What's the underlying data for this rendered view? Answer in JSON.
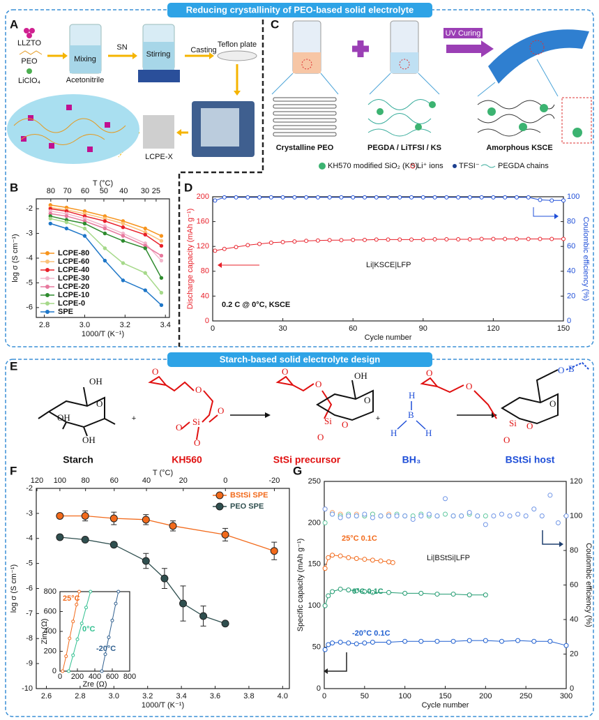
{
  "sections": [
    "Reducing crystallinity of PEO-based solid electrolyte",
    "Starch-based solid electrolyte design"
  ],
  "diagram_a": {
    "panel": "A",
    "labels": [
      "LLZTO",
      "PEO",
      "LiClO₄",
      "Acetonitrile",
      "SN",
      "Mixing",
      "Stirring",
      "Casting",
      "Teflon plate",
      "LCPE-X"
    ]
  },
  "diagram_c": {
    "panel": "C",
    "arrow": "UV Curing",
    "captions": [
      "Crystalline PEO",
      "PEGDA / LiTFSI / KS",
      "Amorphous KSCE"
    ],
    "legend": [
      "KH570 modified SiO₂ (KS)",
      "Li⁺ ions",
      "TFSI⁻",
      "PEGDA chains"
    ]
  },
  "diagram_e": {
    "panel": "E",
    "captions": [
      "Starch",
      "KH560",
      "StSi precursor",
      "BH₃",
      "BStSi host"
    ],
    "plus": "+",
    "atoms": {
      "starch": [
        "OH",
        "O",
        "OH",
        "OH"
      ],
      "kh560": [
        "O",
        "O",
        "Si",
        "O",
        "O",
        "O"
      ],
      "stsi": [
        "O",
        "O",
        "OH",
        "O",
        "Si",
        "O",
        "O"
      ],
      "bh3": [
        "H",
        "B",
        "H",
        "H"
      ],
      "bstsi": [
        "O",
        "O",
        "B",
        "O",
        "O",
        "Si",
        "O",
        "O"
      ]
    }
  },
  "chart_data": [
    {
      "type": "line",
      "panel": "B",
      "xlabel": "1000/T (K⁻¹)",
      "ylabel": "log σ (S cm⁻¹)",
      "x2label": "T (°C)",
      "x": [
        2.83,
        2.91,
        3.0,
        3.1,
        3.19,
        3.3,
        3.38
      ],
      "xlim": [
        2.76,
        3.42
      ],
      "xticks": [
        2.8,
        {
          "value": 3,
          "label": "3.0"
        },
        3.2,
        3.4
      ],
      "x2ticks": [
        {
          "value": 2.832,
          "label": "80"
        },
        {
          "value": 2.914,
          "label": "70"
        },
        {
          "value": 3.002,
          "label": "60"
        },
        {
          "value": 3.095,
          "label": "50"
        },
        {
          "value": 3.193,
          "label": "40"
        },
        {
          "value": 3.299,
          "label": "30"
        },
        {
          "value": 3.354,
          "label": "25"
        }
      ],
      "ylim": [
        -6.4,
        -1.6
      ],
      "yticks": [
        -6,
        -5,
        -4,
        -3,
        -2
      ],
      "legend": "lower left",
      "series": [
        {
          "name": "LCPE-80",
          "color": "#f7941d",
          "values": [
            -1.85,
            -1.95,
            -2.1,
            -2.3,
            -2.5,
            -2.8,
            -3.1
          ]
        },
        {
          "name": "LCPE-60",
          "color": "#fbc27a",
          "values": [
            -1.95,
            -2.05,
            -2.2,
            -2.4,
            -2.6,
            -2.95,
            -3.3
          ]
        },
        {
          "name": "LCPE-40",
          "color": "#e8202a",
          "values": [
            -2.0,
            -2.1,
            -2.3,
            -2.5,
            -2.75,
            -3.05,
            -3.5
          ]
        },
        {
          "name": "LCPE-30",
          "color": "#f2b6cb",
          "values": [
            -2.1,
            -2.2,
            -2.4,
            -2.7,
            -3.0,
            -3.4,
            -4.1
          ]
        },
        {
          "name": "LCPE-20",
          "color": "#e7789d",
          "values": [
            -2.2,
            -2.3,
            -2.5,
            -2.8,
            -3.1,
            -3.5,
            -3.9
          ]
        },
        {
          "name": "LCPE-10",
          "color": "#2e8b2e",
          "values": [
            -2.3,
            -2.45,
            -2.6,
            -3.0,
            -3.3,
            -3.6,
            -4.8
          ]
        },
        {
          "name": "LCPE-0",
          "color": "#a6d98a",
          "values": [
            -2.4,
            -2.55,
            -2.8,
            -3.6,
            -4.2,
            -4.6,
            -5.4
          ]
        },
        {
          "name": "SPE",
          "color": "#1f77c8",
          "values": [
            -2.6,
            -2.8,
            -3.1,
            -4.1,
            -4.9,
            -5.3,
            -5.9
          ]
        }
      ]
    },
    {
      "type": "line",
      "panel": "D",
      "xlabel": "Cycle number",
      "ylabel": "Discharge capacity (mAh g⁻¹)",
      "y2label": "Coulombic efficiency (%)",
      "annotations": [
        "Li|KSCE|LFP",
        "0.2 C @ 0°C, KSCE"
      ],
      "x": [
        1,
        5,
        10,
        15,
        20,
        25,
        30,
        35,
        40,
        45,
        50,
        55,
        60,
        65,
        70,
        75,
        80,
        85,
        90,
        95,
        100,
        105,
        110,
        115,
        120,
        125,
        130,
        135,
        140,
        145,
        150
      ],
      "xlim": [
        0,
        150
      ],
      "xticks": [
        0,
        30,
        60,
        90,
        120,
        150
      ],
      "ylim": [
        0,
        200
      ],
      "yticks": [
        0,
        40,
        80,
        120,
        160,
        200
      ],
      "y2lim": [
        0,
        100
      ],
      "y2ticks": [
        0,
        20,
        40,
        60,
        80,
        100
      ],
      "series": [
        {
          "color": "#e8202a",
          "axis": "y",
          "values": [
            113,
            116,
            119,
            122,
            124,
            126,
            127,
            128,
            129,
            129.5,
            130,
            130,
            130.5,
            130.5,
            131,
            131,
            131,
            131,
            131,
            131.5,
            131.5,
            131.5,
            131.5,
            132,
            132,
            132,
            132,
            132,
            132,
            132,
            132
          ]
        },
        {
          "color": "#1f4fd8",
          "axis": "y2",
          "values": [
            97,
            99.5,
            99.5,
            99.5,
            99.5,
            99.5,
            99.5,
            99.5,
            99.5,
            99.5,
            99.5,
            99.5,
            99.5,
            99.5,
            99.5,
            99.5,
            99.5,
            99.5,
            99.5,
            99.5,
            99.5,
            99.5,
            99.5,
            99.5,
            99.5,
            99.5,
            99.5,
            99.5,
            97.5,
            97,
            97
          ]
        }
      ]
    },
    {
      "type": "line",
      "panel": "F",
      "xlabel": "1000/T (K⁻¹)",
      "ylabel": "log σ (S cm⁻¹)",
      "x2label": "T (°C)",
      "xlim": [
        2.54,
        4.04
      ],
      "xticks": [
        2.6,
        2.8,
        {
          "value": 3,
          "label": "3.0"
        },
        3.2,
        3.4,
        3.6,
        3.8,
        {
          "value": 4,
          "label": "4.0"
        }
      ],
      "x2ticks": [
        {
          "value": 2.544,
          "label": "120"
        },
        {
          "value": 2.68,
          "label": "100"
        },
        {
          "value": 2.832,
          "label": "80"
        },
        {
          "value": 3.002,
          "label": "60"
        },
        {
          "value": 3.193,
          "label": "40"
        },
        {
          "value": 3.411,
          "label": "20"
        },
        {
          "value": 3.661,
          "label": "0"
        },
        {
          "value": 3.951,
          "label": "-20"
        }
      ],
      "ylim": [
        -10,
        -2
      ],
      "yticks": [
        -10,
        -9,
        -8,
        -7,
        -6,
        -5,
        -4,
        -3,
        -2
      ],
      "legend": "upper right",
      "series": [
        {
          "name": "BStSi SPE",
          "color": "#f26a1b",
          "x": [
            2.68,
            2.83,
            3.0,
            3.19,
            3.35,
            3.66,
            3.95
          ],
          "values": [
            -3.1,
            -3.1,
            -3.2,
            -3.25,
            -3.5,
            -3.85,
            -4.5
          ],
          "errors": [
            0.1,
            0.2,
            0.25,
            0.2,
            0.2,
            0.25,
            0.35
          ]
        },
        {
          "name": "PEO SPE",
          "color": "#2f4f4f",
          "x": [
            2.68,
            2.83,
            3.0,
            3.19,
            3.3,
            3.41,
            3.53,
            3.66
          ],
          "values": [
            -3.95,
            -4.05,
            -4.25,
            -4.9,
            -5.6,
            -6.6,
            -7.1,
            -7.4
          ],
          "errors": [
            0.1,
            0.05,
            0.1,
            0.3,
            0.4,
            0.7,
            0.4,
            0
          ]
        }
      ]
    },
    {
      "type": "line",
      "xlabel": "Zre (Ω)",
      "ylabel": "Zim (Ω)",
      "xlim": [
        0,
        800
      ],
      "xticks": [
        0,
        200,
        400,
        600,
        800
      ],
      "ylim": [
        0,
        800
      ],
      "yticks": [
        0,
        200,
        400,
        600,
        800
      ],
      "series": [
        {
          "name": "25°C",
          "color": "#f26a1b",
          "x": [
            30,
            70,
            110,
            150,
            190,
            220
          ],
          "values": [
            0,
            150,
            330,
            500,
            670,
            800
          ]
        },
        {
          "name": "0°C",
          "color": "#2fbf8f",
          "x": [
            100,
            150,
            200,
            250,
            300,
            350
          ],
          "values": [
            0,
            160,
            320,
            480,
            640,
            800
          ]
        },
        {
          "name": "-20°C",
          "color": "#2f5f8f",
          "x": [
            480,
            520,
            560,
            600,
            640,
            670
          ],
          "values": [
            0,
            170,
            340,
            510,
            680,
            800
          ]
        }
      ]
    },
    {
      "type": "line",
      "panel": "G",
      "xlabel": "Cycle number",
      "ylabel": "Specific capacity (mAh g⁻¹)",
      "y2label": "Coulombic efficiency (%)",
      "annotations": [
        "Li|BStSi|LFP"
      ],
      "xlim": [
        0,
        300
      ],
      "xticks": [
        0,
        50,
        100,
        150,
        200,
        250,
        300
      ],
      "ylim": [
        0,
        250
      ],
      "yticks": [
        0,
        50,
        100,
        150,
        200,
        250
      ],
      "y2lim": [
        0,
        120
      ],
      "y2ticks": [
        0,
        20,
        40,
        60,
        80,
        100,
        120
      ],
      "series": [
        {
          "name": "25°C  0.1C",
          "color": "#f26a1b",
          "axis": "y",
          "x": [
            1,
            5,
            10,
            20,
            30,
            40,
            50,
            60,
            70,
            80,
            85
          ],
          "values": [
            145,
            158,
            161,
            160,
            158,
            157,
            156,
            155,
            154,
            153,
            152
          ]
        },
        {
          "name": "0°C  0.1C",
          "color": "#1f9a6f",
          "axis": "y",
          "x": [
            1,
            5,
            10,
            20,
            30,
            40,
            50,
            60,
            80,
            100,
            120,
            140,
            160,
            180,
            200
          ],
          "values": [
            100,
            112,
            117,
            120,
            119,
            118,
            117,
            116,
            116,
            115,
            115,
            114,
            114,
            113,
            113
          ]
        },
        {
          "name": "-20°C  0.1C",
          "color": "#1f5fd0",
          "axis": "y",
          "x": [
            1,
            5,
            10,
            20,
            30,
            40,
            50,
            60,
            80,
            100,
            120,
            140,
            160,
            180,
            200,
            220,
            240,
            260,
            280,
            300
          ],
          "values": [
            47,
            53,
            55,
            56,
            55,
            54,
            55,
            56,
            56,
            57,
            57,
            57,
            57,
            58,
            58,
            57,
            58,
            57,
            57,
            52
          ]
        },
        {
          "color": "#f5a06a",
          "axis": "y2",
          "linestyle": "none",
          "x": [
            1,
            10,
            20,
            30,
            40,
            50,
            60,
            70,
            80
          ],
          "values": [
            104,
            102,
            101,
            100,
            101,
            100,
            101,
            100,
            101
          ]
        },
        {
          "color": "#5fc79f",
          "axis": "y2",
          "linestyle": "none",
          "x": [
            1,
            10,
            20,
            30,
            40,
            50,
            60,
            70,
            80,
            90,
            100,
            110,
            120,
            130,
            140,
            150,
            160,
            170,
            180,
            190,
            200
          ],
          "values": [
            96,
            101,
            100,
            101,
            100,
            100,
            101,
            100,
            100,
            101,
            100,
            100,
            101,
            100,
            100,
            101,
            100,
            100,
            101,
            100,
            100
          ]
        },
        {
          "color": "#6f95e6",
          "axis": "y2",
          "linestyle": "none",
          "x": [
            1,
            10,
            20,
            30,
            40,
            50,
            60,
            70,
            80,
            90,
            100,
            110,
            120,
            130,
            140,
            150,
            160,
            170,
            180,
            190,
            200,
            210,
            220,
            230,
            240,
            250,
            260,
            270,
            280,
            290,
            300
          ],
          "values": [
            104,
            101,
            99,
            100,
            100,
            101,
            99,
            100,
            100,
            100,
            100,
            98,
            100,
            101,
            100,
            110,
            100,
            100,
            102,
            100,
            95,
            100,
            101,
            100,
            101,
            100,
            104,
            100,
            112,
            96,
            100
          ]
        }
      ]
    }
  ]
}
